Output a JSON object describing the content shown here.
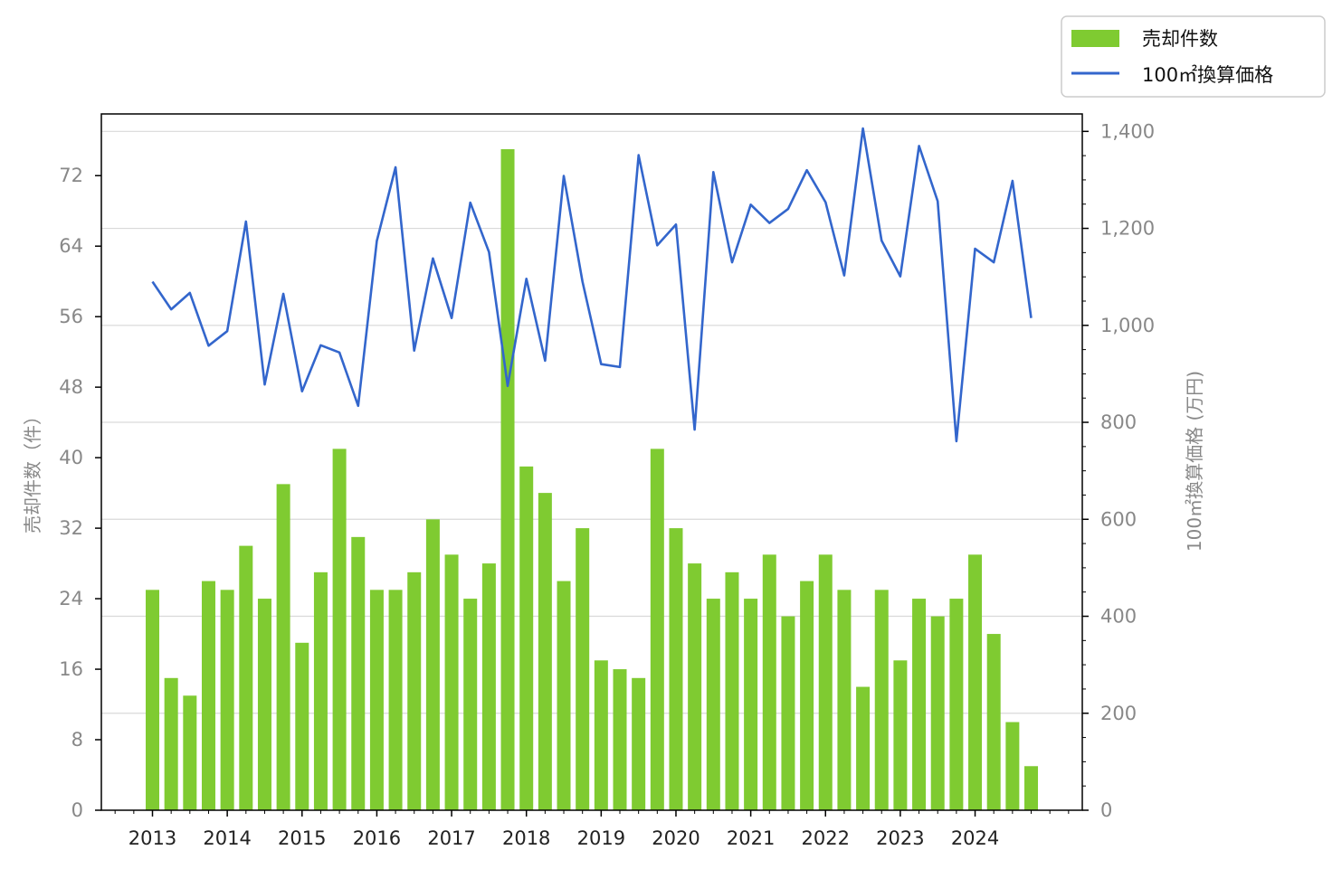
{
  "chart_data": {
    "type": "bar+line",
    "x_tick_labels": [
      "2013",
      "2014",
      "2015",
      "2016",
      "2017",
      "2018",
      "2019",
      "2020",
      "2021",
      "2022",
      "2023",
      "2024"
    ],
    "bar_series": {
      "name": "売却件数",
      "color": "#7fcb31",
      "values": [
        25,
        15,
        13,
        26,
        25,
        30,
        24,
        37,
        19,
        27,
        41,
        31,
        25,
        25,
        27,
        33,
        29,
        24,
        28,
        75,
        39,
        36,
        26,
        32,
        17,
        16,
        15,
        41,
        32,
        28,
        24,
        27,
        24,
        29,
        22,
        26,
        29,
        25,
        14,
        25,
        17,
        24,
        22,
        24,
        29,
        20,
        10,
        5
      ]
    },
    "line_series": {
      "name": "100㎡換算価格",
      "color": "#3366cc",
      "values": [
        1090,
        1033,
        1067,
        958,
        988,
        1214,
        878,
        1065,
        864,
        959,
        944,
        834,
        1174,
        1326,
        948,
        1138,
        1015,
        1253,
        1151,
        875,
        1096,
        927,
        1308,
        1090,
        920,
        914,
        1351,
        1165,
        1208,
        785,
        1316,
        1130,
        1249,
        1211,
        1240,
        1320,
        1254,
        1103,
        1406,
        1175,
        1101,
        1370,
        1256,
        761,
        1158,
        1130,
        1298,
        1015
      ]
    },
    "y_left": {
      "label": "売却件数（件）",
      "ticks": [
        "0",
        "8",
        "16",
        "24",
        "32",
        "40",
        "48",
        "56",
        "64",
        "72"
      ],
      "ylim": [
        0,
        79
      ]
    },
    "y_right": {
      "label": "100㎡換算価格 (万円)",
      "ticks": [
        "0",
        "200",
        "400",
        "600",
        "800",
        "1,000",
        "1,200",
        "1,400"
      ],
      "ylim": [
        0,
        1436
      ]
    },
    "grid": "horizontal (right axis)",
    "legend": {
      "placement": "top-right",
      "entries": [
        "売却件数",
        "100㎡換算価格"
      ]
    }
  }
}
